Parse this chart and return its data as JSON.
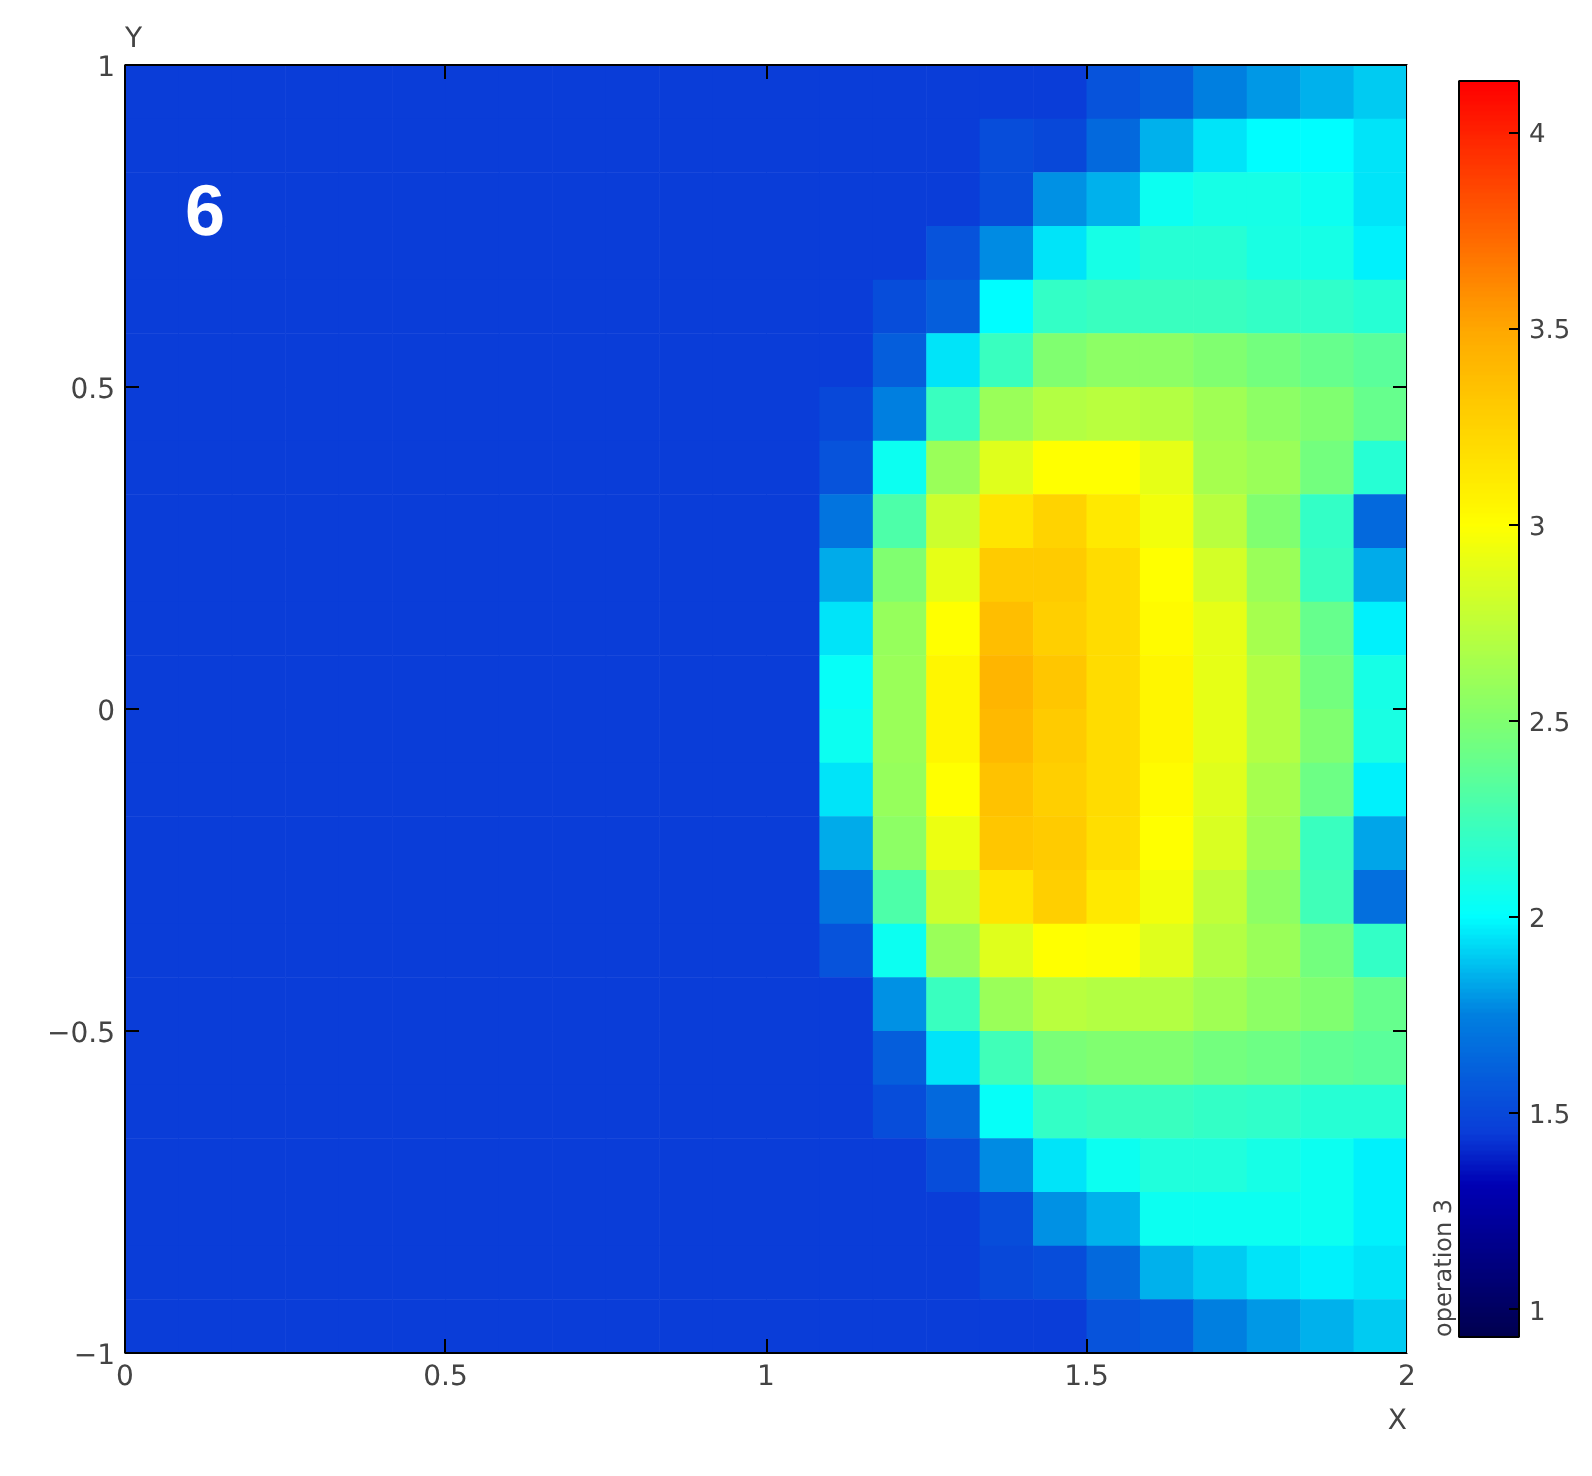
{
  "chart_data": {
    "type": "heatmap",
    "xlabel": "X",
    "ylabel": "Y",
    "clabel": "operation 3",
    "annotations": [
      "6"
    ],
    "xlim": [
      0,
      2
    ],
    "ylim": [
      -1,
      1
    ],
    "xticks": [
      0,
      0.5,
      1,
      1.5,
      2
    ],
    "yticks": [
      {
        "value": -1,
        "label": "−1"
      },
      {
        "value": -0.5,
        "label": "−0.5"
      },
      0,
      0.5,
      1
    ],
    "clim": [
      0.93,
      4.13
    ],
    "cticks": [
      1,
      1.5,
      2,
      2.5,
      3,
      3.5,
      4
    ],
    "cells": [
      [
        1.45,
        1.45,
        1.45,
        1.45,
        1.45,
        1.45,
        1.45,
        1.45,
        1.45,
        1.45,
        1.45,
        1.45,
        1.45,
        1.45,
        1.45,
        1.45,
        1.45,
        1.45,
        1.55,
        1.6,
        1.75,
        1.8,
        1.85,
        1.9
      ],
      [
        1.45,
        1.45,
        1.45,
        1.45,
        1.45,
        1.45,
        1.45,
        1.45,
        1.45,
        1.45,
        1.45,
        1.45,
        1.45,
        1.45,
        1.45,
        1.45,
        1.52,
        1.5,
        1.65,
        1.85,
        1.95,
        2.0,
        2.0,
        1.95
      ],
      [
        1.45,
        1.45,
        1.45,
        1.45,
        1.45,
        1.45,
        1.45,
        1.45,
        1.45,
        1.45,
        1.45,
        1.45,
        1.45,
        1.45,
        1.45,
        1.45,
        1.52,
        1.78,
        1.85,
        2.05,
        2.08,
        2.08,
        2.05,
        1.95
      ],
      [
        1.45,
        1.45,
        1.45,
        1.45,
        1.45,
        1.45,
        1.45,
        1.45,
        1.45,
        1.45,
        1.45,
        1.45,
        1.45,
        1.45,
        1.45,
        1.55,
        1.77,
        1.95,
        2.08,
        2.15,
        2.15,
        2.1,
        2.08,
        1.97
      ],
      [
        1.45,
        1.45,
        1.45,
        1.45,
        1.45,
        1.45,
        1.45,
        1.45,
        1.45,
        1.45,
        1.45,
        1.45,
        1.45,
        1.45,
        1.52,
        1.6,
        2.0,
        2.2,
        2.22,
        2.22,
        2.22,
        2.2,
        2.18,
        2.15
      ],
      [
        1.45,
        1.45,
        1.45,
        1.45,
        1.45,
        1.45,
        1.45,
        1.45,
        1.45,
        1.45,
        1.45,
        1.45,
        1.45,
        1.45,
        1.6,
        1.95,
        2.22,
        2.5,
        2.55,
        2.55,
        2.5,
        2.45,
        2.4,
        2.35
      ],
      [
        1.45,
        1.45,
        1.45,
        1.45,
        1.45,
        1.45,
        1.45,
        1.45,
        1.45,
        1.45,
        1.45,
        1.45,
        1.45,
        1.5,
        1.75,
        2.22,
        2.6,
        2.7,
        2.72,
        2.7,
        2.62,
        2.55,
        2.5,
        2.4
      ],
      [
        1.45,
        1.45,
        1.45,
        1.45,
        1.45,
        1.45,
        1.45,
        1.45,
        1.45,
        1.45,
        1.45,
        1.45,
        1.45,
        1.55,
        2.05,
        2.6,
        2.88,
        3.0,
        3.0,
        2.9,
        2.65,
        2.6,
        2.45,
        2.15
      ],
      [
        1.45,
        1.45,
        1.45,
        1.45,
        1.45,
        1.45,
        1.45,
        1.45,
        1.45,
        1.45,
        1.45,
        1.45,
        1.45,
        1.7,
        2.3,
        2.8,
        3.15,
        3.25,
        3.12,
        2.95,
        2.72,
        2.5,
        2.2,
        1.65
      ],
      [
        1.45,
        1.45,
        1.45,
        1.45,
        1.45,
        1.45,
        1.45,
        1.45,
        1.45,
        1.45,
        1.45,
        1.45,
        1.45,
        1.83,
        2.5,
        2.9,
        3.3,
        3.3,
        3.2,
        3.0,
        2.82,
        2.6,
        2.22,
        1.83
      ],
      [
        1.45,
        1.45,
        1.45,
        1.45,
        1.45,
        1.45,
        1.45,
        1.45,
        1.45,
        1.45,
        1.45,
        1.45,
        1.45,
        1.95,
        2.58,
        3.0,
        3.38,
        3.28,
        3.2,
        3.02,
        2.9,
        2.65,
        2.4,
        1.97
      ],
      [
        1.45,
        1.45,
        1.45,
        1.45,
        1.45,
        1.45,
        1.45,
        1.45,
        1.45,
        1.45,
        1.45,
        1.45,
        1.45,
        2.03,
        2.6,
        3.05,
        3.42,
        3.32,
        3.2,
        3.05,
        2.9,
        2.7,
        2.45,
        2.08
      ],
      [
        1.45,
        1.45,
        1.45,
        1.45,
        1.45,
        1.45,
        1.45,
        1.45,
        1.45,
        1.45,
        1.45,
        1.45,
        1.45,
        2.05,
        2.6,
        3.05,
        3.4,
        3.3,
        3.2,
        3.05,
        2.9,
        2.7,
        2.5,
        2.1
      ],
      [
        1.45,
        1.45,
        1.45,
        1.45,
        1.45,
        1.45,
        1.45,
        1.45,
        1.45,
        1.45,
        1.45,
        1.45,
        1.45,
        1.95,
        2.58,
        3.0,
        3.35,
        3.28,
        3.2,
        3.02,
        2.88,
        2.65,
        2.42,
        1.97
      ],
      [
        1.45,
        1.45,
        1.45,
        1.45,
        1.45,
        1.45,
        1.45,
        1.45,
        1.45,
        1.45,
        1.45,
        1.45,
        1.45,
        1.83,
        2.55,
        2.92,
        3.32,
        3.3,
        3.18,
        3.0,
        2.85,
        2.62,
        2.22,
        1.82
      ],
      [
        1.45,
        1.45,
        1.45,
        1.45,
        1.45,
        1.45,
        1.45,
        1.45,
        1.45,
        1.45,
        1.45,
        1.45,
        1.45,
        1.7,
        2.3,
        2.8,
        3.15,
        3.28,
        3.12,
        2.95,
        2.75,
        2.55,
        2.25,
        1.68
      ],
      [
        1.45,
        1.45,
        1.45,
        1.45,
        1.45,
        1.45,
        1.45,
        1.45,
        1.45,
        1.45,
        1.45,
        1.45,
        1.45,
        1.55,
        2.05,
        2.6,
        2.88,
        3.0,
        2.98,
        2.88,
        2.7,
        2.6,
        2.45,
        2.2
      ],
      [
        1.45,
        1.45,
        1.45,
        1.45,
        1.45,
        1.45,
        1.45,
        1.45,
        1.45,
        1.45,
        1.45,
        1.45,
        1.45,
        1.45,
        1.78,
        2.22,
        2.6,
        2.72,
        2.7,
        2.7,
        2.62,
        2.55,
        2.5,
        2.4
      ],
      [
        1.45,
        1.45,
        1.45,
        1.45,
        1.45,
        1.45,
        1.45,
        1.45,
        1.45,
        1.45,
        1.45,
        1.45,
        1.45,
        1.45,
        1.6,
        1.95,
        2.25,
        2.48,
        2.5,
        2.5,
        2.45,
        2.42,
        2.38,
        2.35
      ],
      [
        1.45,
        1.45,
        1.45,
        1.45,
        1.45,
        1.45,
        1.45,
        1.45,
        1.45,
        1.45,
        1.45,
        1.45,
        1.45,
        1.45,
        1.52,
        1.65,
        2.03,
        2.2,
        2.22,
        2.22,
        2.2,
        2.18,
        2.15,
        2.15
      ],
      [
        1.45,
        1.45,
        1.45,
        1.45,
        1.45,
        1.45,
        1.45,
        1.45,
        1.45,
        1.45,
        1.45,
        1.45,
        1.45,
        1.45,
        1.45,
        1.52,
        1.77,
        1.95,
        2.05,
        2.12,
        2.12,
        2.08,
        2.05,
        1.97
      ],
      [
        1.45,
        1.45,
        1.45,
        1.45,
        1.45,
        1.45,
        1.45,
        1.45,
        1.45,
        1.45,
        1.45,
        1.45,
        1.45,
        1.45,
        1.45,
        1.45,
        1.52,
        1.78,
        1.85,
        2.05,
        2.05,
        2.05,
        2.05,
        1.97
      ],
      [
        1.45,
        1.45,
        1.45,
        1.45,
        1.45,
        1.45,
        1.45,
        1.45,
        1.45,
        1.45,
        1.45,
        1.45,
        1.45,
        1.45,
        1.45,
        1.45,
        1.5,
        1.52,
        1.65,
        1.85,
        1.9,
        1.95,
        1.98,
        1.95
      ],
      [
        1.45,
        1.45,
        1.45,
        1.45,
        1.45,
        1.45,
        1.45,
        1.45,
        1.45,
        1.45,
        1.45,
        1.45,
        1.45,
        1.45,
        1.45,
        1.45,
        1.45,
        1.45,
        1.55,
        1.58,
        1.75,
        1.8,
        1.85,
        1.9
      ]
    ]
  }
}
